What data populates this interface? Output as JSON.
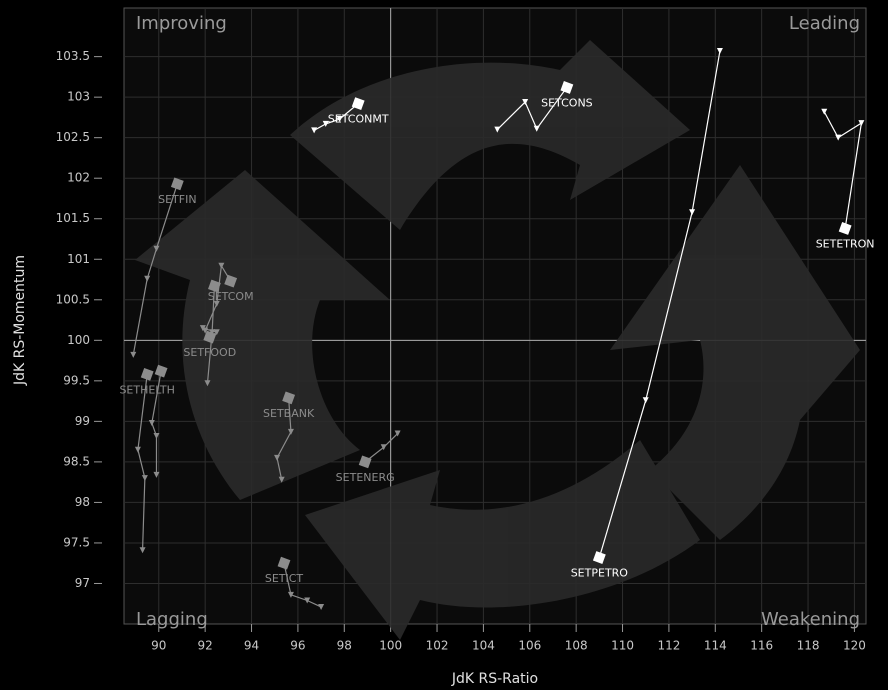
{
  "chart_data": {
    "type": "scatter",
    "x_label": "JdK RS-Ratio",
    "y_label": "JdK RS-Momentum",
    "quadrants": {
      "top_left": "Improving",
      "top_right": "Leading",
      "bottom_left": "Lagging",
      "bottom_right": "Weakening"
    },
    "xlim": [
      88.5,
      120.5
    ],
    "ylim": [
      96.5,
      104.1
    ],
    "xticks": [
      90,
      92,
      94,
      96,
      98,
      100,
      102,
      104,
      106,
      108,
      110,
      112,
      114,
      116,
      118,
      120
    ],
    "yticks": [
      97,
      97.5,
      98,
      98.5,
      99,
      99.5,
      100,
      100.5,
      101,
      101.5,
      102,
      102.5,
      103,
      103.5
    ],
    "center": [
      100,
      100
    ],
    "grid": true,
    "series": [
      {
        "name": "SETPETRO",
        "color": "#ffffff",
        "x": [
          114.2,
          113.0,
          111.0,
          109.0
        ],
        "y": [
          103.57,
          101.58,
          99.26,
          97.32
        ]
      },
      {
        "name": "SETETRON",
        "color": "#ffffff",
        "x": [
          118.7,
          119.3,
          120.3,
          119.6
        ],
        "y": [
          102.82,
          102.5,
          102.68,
          101.38
        ]
      },
      {
        "name": "SETCONS",
        "color": "#ffffff",
        "x": [
          104.6,
          105.8,
          106.3,
          107.6
        ],
        "y": [
          102.6,
          102.94,
          102.61,
          103.12
        ]
      },
      {
        "name": "SETCONMT",
        "color": "#ffffff",
        "x": [
          96.7,
          97.2,
          97.8,
          98.6
        ],
        "y": [
          102.59,
          102.67,
          102.73,
          102.92
        ]
      },
      {
        "name": "SETFIN",
        "color": "#8c8c8c",
        "x": [
          88.9,
          89.5,
          89.9,
          90.8
        ],
        "y": [
          99.82,
          100.76,
          101.13,
          101.93
        ]
      },
      {
        "name": "SETHELTH",
        "color": "#8c8c8c",
        "x": [
          89.3,
          89.4,
          89.1,
          89.5
        ],
        "y": [
          97.41,
          98.3,
          98.65,
          99.58
        ]
      },
      {
        "name": null,
        "color": "#8c8c8c",
        "x": [
          89.9,
          89.9,
          89.7,
          90.1
        ],
        "y": [
          98.34,
          98.82,
          98.98,
          99.62
        ]
      },
      {
        "name": "SETCOM",
        "color": "#8c8c8c",
        "x": [
          92.0,
          92.5,
          92.7,
          93.1
        ],
        "y": [
          100.12,
          100.45,
          100.92,
          100.73
        ]
      },
      {
        "name": null,
        "color": "#8c8c8c",
        "x": [
          92.1,
          92.3,
          92.4
        ],
        "y": [
          99.47,
          100.1,
          100.67
        ]
      },
      {
        "name": "SETFOOD",
        "color": "#8c8c8c",
        "x": [
          91.9,
          92.5,
          92.2
        ],
        "y": [
          100.15,
          100.1,
          100.04
        ]
      },
      {
        "name": "SETBANK",
        "color": "#8c8c8c",
        "x": [
          95.3,
          95.1,
          95.7,
          95.6
        ],
        "y": [
          98.28,
          98.55,
          98.87,
          99.29
        ]
      },
      {
        "name": "SETENERG",
        "color": "#8c8c8c",
        "x": [
          100.3,
          99.7,
          98.9
        ],
        "y": [
          98.85,
          98.68,
          98.5
        ]
      },
      {
        "name": "SETICT",
        "color": "#8c8c8c",
        "x": [
          97.0,
          96.4,
          95.7,
          95.4
        ],
        "y": [
          96.71,
          96.79,
          96.86,
          97.25
        ]
      }
    ]
  }
}
